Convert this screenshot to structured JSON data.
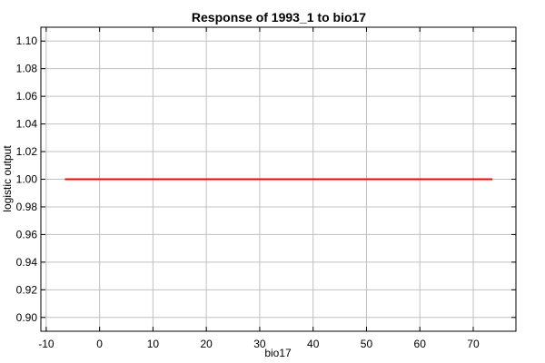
{
  "chart_data": {
    "type": "line",
    "title": "Response of 1993_1 to bio17",
    "xlabel": "bio17",
    "ylabel": "logistic output",
    "xlim": [
      -11,
      78
    ],
    "ylim": [
      0.89,
      1.11
    ],
    "x_ticks": [
      -10,
      0,
      10,
      20,
      30,
      40,
      50,
      60,
      70
    ],
    "y_ticks": [
      0.9,
      0.92,
      0.94,
      0.96,
      0.98,
      1.0,
      1.02,
      1.04,
      1.06,
      1.08,
      1.1
    ],
    "x_tick_labels": [
      "-10",
      "0",
      "10",
      "20",
      "30",
      "40",
      "50",
      "60",
      "70"
    ],
    "y_tick_labels": [
      "0.90",
      "0.92",
      "0.94",
      "0.96",
      "0.98",
      "1.00",
      "1.02",
      "1.04",
      "1.06",
      "1.08",
      "1.10"
    ],
    "grid": true,
    "series": [
      {
        "color": "#ff0000",
        "x": [
          -6.5,
          73.6
        ],
        "y": [
          1.0,
          1.0
        ]
      }
    ]
  }
}
